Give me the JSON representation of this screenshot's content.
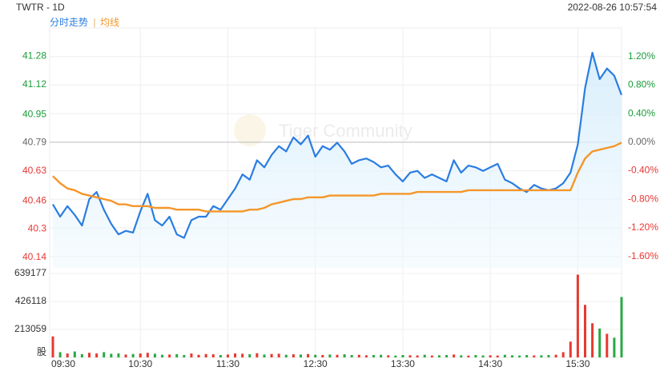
{
  "header": {
    "title": "TWTR - 1D",
    "timestamp": "2022-08-26 10:57:54"
  },
  "chart_data": {
    "type": "line",
    "watermark": "Tiger Community",
    "xlim": [
      0,
      390
    ],
    "xticks": [
      {
        "value": 0,
        "label": "09:30"
      },
      {
        "value": 60,
        "label": "10:30"
      },
      {
        "value": 120,
        "label": "11:30"
      },
      {
        "value": 180,
        "label": "12:30"
      },
      {
        "value": 240,
        "label": "13:30"
      },
      {
        "value": 300,
        "label": "14:30"
      },
      {
        "value": 360,
        "label": "15:30"
      }
    ],
    "ylim": [
      40.08,
      41.44
    ],
    "yticks": [
      41.28,
      41.12,
      40.95,
      40.79,
      40.63,
      40.46,
      40.3,
      40.14
    ],
    "y2lim": [
      -1.76,
      1.6
    ],
    "y2ticks": [
      {
        "value": 1.2,
        "label": "1.20%"
      },
      {
        "value": 0.8,
        "label": "0.80%"
      },
      {
        "value": 0.4,
        "label": "0.40%"
      },
      {
        "value": 0,
        "label": "0.00%"
      },
      {
        "value": -0.4,
        "label": "-0.40%"
      },
      {
        "value": -0.8,
        "label": "-0.80%"
      },
      {
        "value": -1.2,
        "label": "-1.20%"
      },
      {
        "value": -1.6,
        "label": "-1.60%"
      }
    ],
    "grid": true,
    "legend": "top-left",
    "x": [
      0,
      5,
      10,
      15,
      20,
      25,
      30,
      35,
      40,
      45,
      50,
      55,
      60,
      65,
      70,
      75,
      80,
      85,
      90,
      95,
      100,
      105,
      110,
      115,
      120,
      125,
      130,
      135,
      140,
      145,
      150,
      155,
      160,
      165,
      170,
      175,
      180,
      185,
      190,
      195,
      200,
      205,
      210,
      215,
      220,
      225,
      230,
      235,
      240,
      245,
      250,
      255,
      260,
      265,
      270,
      275,
      280,
      285,
      290,
      295,
      300,
      305,
      310,
      315,
      320,
      325,
      330,
      335,
      340,
      345,
      350,
      355,
      360,
      365,
      370,
      375,
      380,
      385,
      390
    ],
    "series": [
      {
        "name": "分时走势",
        "color": "#2a7de1",
        "values": [
          40.44,
          40.37,
          40.43,
          40.38,
          40.32,
          40.47,
          40.51,
          40.41,
          40.33,
          40.27,
          40.29,
          40.28,
          40.4,
          40.5,
          40.35,
          40.32,
          40.37,
          40.27,
          40.25,
          40.35,
          40.37,
          40.37,
          40.43,
          40.41,
          40.47,
          40.53,
          40.61,
          40.58,
          40.69,
          40.65,
          40.72,
          40.77,
          40.74,
          40.82,
          40.78,
          40.83,
          40.71,
          40.77,
          40.75,
          40.79,
          40.74,
          40.67,
          40.69,
          40.7,
          40.68,
          40.65,
          40.66,
          40.61,
          40.57,
          40.62,
          40.63,
          40.59,
          40.61,
          40.59,
          40.57,
          40.69,
          40.62,
          40.66,
          40.65,
          40.63,
          40.65,
          40.67,
          40.58,
          40.56,
          40.53,
          40.51,
          40.55,
          40.53,
          40.52,
          40.53,
          40.56,
          40.62,
          40.78,
          41.1,
          41.3,
          41.15,
          41.21,
          41.17,
          41.06
        ]
      },
      {
        "name": "均线",
        "color": "#f5962a",
        "values": [
          40.6,
          40.56,
          40.53,
          40.52,
          40.5,
          40.49,
          40.48,
          40.47,
          40.46,
          40.44,
          40.44,
          40.43,
          40.43,
          40.43,
          40.42,
          40.42,
          40.42,
          40.41,
          40.41,
          40.41,
          40.41,
          40.4,
          40.4,
          40.4,
          40.4,
          40.4,
          40.4,
          40.41,
          40.41,
          40.42,
          40.44,
          40.45,
          40.46,
          40.47,
          40.47,
          40.48,
          40.48,
          40.48,
          40.49,
          40.49,
          40.49,
          40.49,
          40.49,
          40.49,
          40.49,
          40.5,
          40.5,
          40.5,
          40.5,
          40.5,
          40.51,
          40.51,
          40.51,
          40.51,
          40.51,
          40.51,
          40.51,
          40.52,
          40.52,
          40.52,
          40.52,
          40.52,
          40.52,
          40.52,
          40.52,
          40.52,
          40.52,
          40.52,
          40.52,
          40.52,
          40.52,
          40.52,
          40.62,
          40.7,
          40.74,
          40.75,
          40.76,
          40.77,
          40.79
        ]
      }
    ],
    "volume": {
      "up_color": "#e8382f",
      "down_color": "#2aa845",
      "ylim": [
        0,
        663500
      ],
      "yticks": [
        {
          "value": 0,
          "label": "股"
        },
        213059,
        426118,
        639177
      ],
      "values": [
        160000,
        40000,
        30000,
        45000,
        25000,
        35000,
        30000,
        40000,
        28000,
        30000,
        22000,
        26000,
        30000,
        35000,
        28000,
        20000,
        22000,
        25000,
        18000,
        30000,
        20000,
        26000,
        24000,
        18000,
        22000,
        30000,
        28000,
        24000,
        32000,
        22000,
        26000,
        28000,
        20000,
        24000,
        22000,
        26000,
        20000,
        18000,
        22000,
        20000,
        24000,
        18000,
        20000,
        16000,
        18000,
        20000,
        16000,
        14000,
        18000,
        16000,
        15000,
        20000,
        14000,
        16000,
        18000,
        22000,
        16000,
        14000,
        18000,
        15000,
        16000,
        14000,
        20000,
        16000,
        14000,
        18000,
        15000,
        16000,
        18000,
        20000,
        40000,
        120000,
        630000,
        400000,
        260000,
        220000,
        180000,
        150000,
        460000
      ]
    }
  }
}
